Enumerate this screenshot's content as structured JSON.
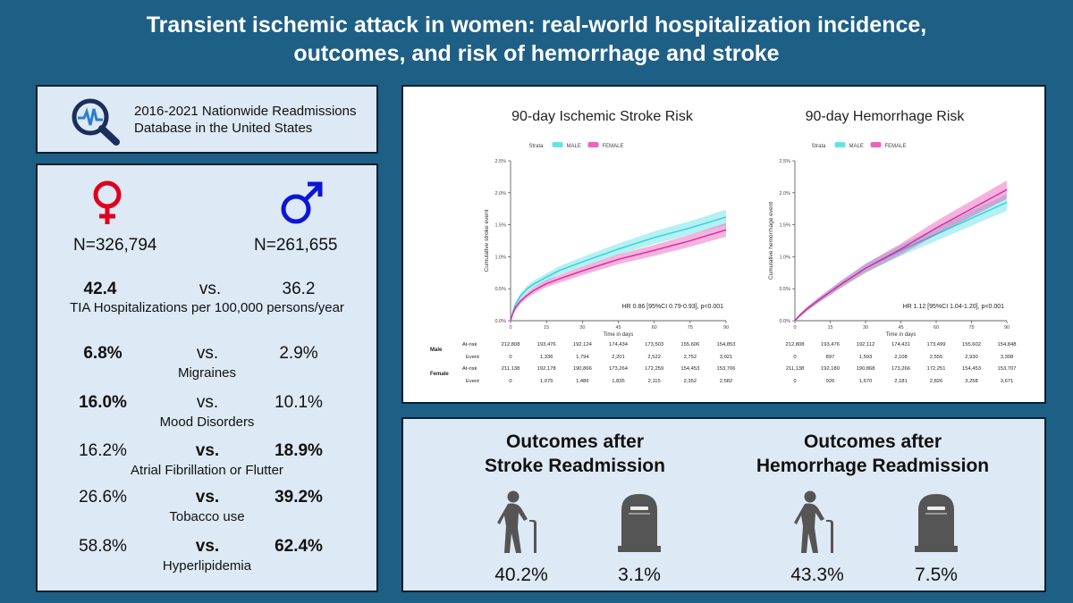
{
  "title_line1": "Transient ischemic attack in women: real-world hospitalization incidence,",
  "title_line2": "outcomes, and risk of hemorrhage and stroke",
  "database": {
    "line1": "2016-2021 Nationwide Readmissions",
    "line2": "Database in the United States",
    "icon": "magnifier-heartbeat-icon"
  },
  "stats": {
    "female_icon": "female-symbol-icon",
    "male_icon": "male-symbol-icon",
    "female_n": "N=326,794",
    "male_n": "N=261,655",
    "vs": "vs.",
    "tia": {
      "female": "42.4",
      "male": "36.2",
      "label": "TIA Hospitalizations per 100,000 persons/year"
    },
    "rows": [
      {
        "female": "6.8%",
        "male": "2.9%",
        "label": "Migraines"
      },
      {
        "female": "16.0%",
        "male": "10.1%",
        "label": "Mood Disorders"
      },
      {
        "female": "16.2%",
        "male": "18.9%",
        "label": "Atrial Fibrillation or Flutter"
      },
      {
        "female": "26.6%",
        "male": "39.2%",
        "label": "Tobacco use"
      },
      {
        "female": "58.8%",
        "male": "62.4%",
        "label": "Hyperlipidemia"
      }
    ]
  },
  "colors": {
    "male": "#2ad4d9",
    "female": "#e0249f",
    "female_symbol": "#e0001c",
    "male_symbol": "#0a16d6"
  },
  "legend": {
    "strata": "Strata",
    "male": "MALE",
    "female": "FEMALE"
  },
  "table_labels": {
    "male": "Male",
    "female": "Female",
    "at_risk": "At-risk",
    "event": "Event"
  },
  "chart_data": [
    {
      "type": "line",
      "title": "90-day Ischemic Stroke Risk",
      "xlabel": "Time in days",
      "ylabel": "Cumulative stroke event",
      "xlim": [
        0,
        90
      ],
      "ylim": [
        0,
        2.5
      ],
      "xticks": [
        "0",
        "15",
        "30",
        "45",
        "60",
        "75",
        "90"
      ],
      "yticks": [
        "0.0%",
        "0.5%",
        "1.0%",
        "1.5%",
        "2.0%",
        "2.5%"
      ],
      "annotation": "HR 0.86 [95%CI 0.79-0.93], p<0.001",
      "x": [
        0,
        1,
        2,
        4,
        7,
        10,
        15,
        20,
        30,
        45,
        60,
        75,
        90
      ],
      "series": [
        {
          "name": "MALE",
          "values": [
            0,
            0.15,
            0.25,
            0.38,
            0.5,
            0.58,
            0.68,
            0.78,
            0.92,
            1.12,
            1.3,
            1.45,
            1.62
          ]
        },
        {
          "name": "FEMALE",
          "values": [
            0,
            0.12,
            0.2,
            0.3,
            0.4,
            0.48,
            0.58,
            0.65,
            0.78,
            0.96,
            1.1,
            1.25,
            1.42
          ]
        }
      ],
      "risk_table": {
        "male_at_risk": [
          "212,808",
          "193,476",
          "192,124",
          "174,434",
          "173,503",
          "155,606",
          "154,853"
        ],
        "male_event": [
          "0",
          "1,336",
          "1,794",
          "2,201",
          "2,522",
          "2,752",
          "3,021"
        ],
        "female_at_risk": [
          "211,138",
          "192,178",
          "190,866",
          "173,264",
          "172,259",
          "154,453",
          "153,706"
        ],
        "female_event": [
          "0",
          "1,075",
          "1,486",
          "1,835",
          "2,115",
          "2,352",
          "2,582"
        ]
      }
    },
    {
      "type": "line",
      "title": "90-day Hemorrhage Risk",
      "xlabel": "Time in days",
      "ylabel": "Cumulative hemorrhage event",
      "xlim": [
        0,
        90
      ],
      "ylim": [
        0,
        2.5
      ],
      "xticks": [
        "0",
        "15",
        "30",
        "45",
        "60",
        "75",
        "90"
      ],
      "yticks": [
        "0.0%",
        "0.5%",
        "1.0%",
        "1.5%",
        "2.0%",
        "2.5%"
      ],
      "annotation": "HR 1.12 [95%CI 1.04-1.20], p<0.001",
      "x": [
        0,
        2,
        5,
        10,
        15,
        20,
        30,
        45,
        60,
        75,
        90
      ],
      "series": [
        {
          "name": "MALE",
          "values": [
            0,
            0.08,
            0.18,
            0.32,
            0.45,
            0.58,
            0.82,
            1.1,
            1.35,
            1.6,
            1.85
          ]
        },
        {
          "name": "FEMALE",
          "values": [
            0,
            0.08,
            0.18,
            0.32,
            0.45,
            0.58,
            0.82,
            1.12,
            1.45,
            1.75,
            2.05
          ]
        }
      ],
      "risk_table": {
        "male_at_risk": [
          "212,808",
          "193,476",
          "192,112",
          "174,431",
          "173,499",
          "155,602",
          "154,848"
        ],
        "male_event": [
          "0",
          "897",
          "1,593",
          "2,108",
          "2,555",
          "2,930",
          "3,308"
        ],
        "female_at_risk": [
          "211,138",
          "192,180",
          "190,868",
          "173,266",
          "172,251",
          "154,453",
          "153,707"
        ],
        "female_event": [
          "0",
          "926",
          "1,670",
          "2,181",
          "2,826",
          "3,258",
          "3,671"
        ]
      }
    }
  ],
  "outcomes": {
    "stroke": {
      "title1": "Outcomes after",
      "title2": "Stroke Readmission",
      "disability": "40.2%",
      "death": "3.1%"
    },
    "hemorrhage": {
      "title1": "Outcomes after",
      "title2": "Hemorrhage Readmission",
      "disability": "43.3%",
      "death": "7.5%"
    },
    "disability_icon": "elderly-person-cane-icon",
    "death_icon": "tombstone-icon"
  }
}
